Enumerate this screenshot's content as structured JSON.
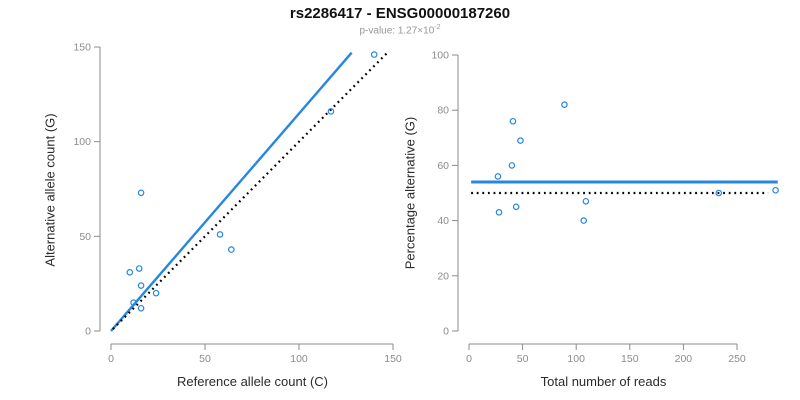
{
  "header": {
    "title": "rs2286417 - ENSG00000187260",
    "subtitle_prefix": "p-value: 1.27×10",
    "subtitle_exponent": "-2"
  },
  "colors": {
    "accent": "#2787e0",
    "dotted_line": "#000000",
    "axis": "#8b8b8b",
    "tick_label": "#8c8c8c",
    "axis_title": "#2b2b2b",
    "title": "#111111",
    "subtitle": "#979797",
    "background": "#ffffff"
  },
  "chart_data": [
    {
      "type": "scatter",
      "xlabel": "Reference allele count (C)",
      "ylabel": "Alternative allele count (G)",
      "xlim": [
        0,
        150
      ],
      "ylim": [
        0,
        150
      ],
      "xticks": [
        0,
        50,
        100,
        150
      ],
      "yticks": [
        0,
        50,
        100,
        150
      ],
      "grid": false,
      "legend": null,
      "points": [
        [
          140,
          146
        ],
        [
          117,
          116
        ],
        [
          16,
          73
        ],
        [
          58,
          51
        ],
        [
          64,
          43
        ],
        [
          15,
          33
        ],
        [
          10,
          31
        ],
        [
          16,
          24
        ],
        [
          24,
          20
        ],
        [
          12,
          15
        ],
        [
          16,
          12
        ]
      ],
      "lines": [
        {
          "name": "fit-line",
          "style": "solid",
          "color": "#2787e0",
          "width": 2.4,
          "x1": 0,
          "y1": 0,
          "x2": 128,
          "y2": 147
        },
        {
          "name": "expected-line",
          "style": "dotted",
          "color": "#000000",
          "width": 2.2,
          "x1": 1,
          "y1": 1,
          "x2": 147,
          "y2": 147
        }
      ]
    },
    {
      "type": "scatter",
      "xlabel": "Total number of reads",
      "ylabel": "Percentage alternative (G)",
      "xlim": [
        0,
        290
      ],
      "ylim": [
        0,
        100
      ],
      "xticks": [
        0,
        50,
        100,
        150,
        200,
        250
      ],
      "yticks": [
        0,
        20,
        40,
        60,
        80,
        100
      ],
      "grid": false,
      "legend": null,
      "points": [
        [
          286,
          51
        ],
        [
          233,
          50
        ],
        [
          89,
          82
        ],
        [
          109,
          47
        ],
        [
          107,
          40
        ],
        [
          48,
          69
        ],
        [
          41,
          76
        ],
        [
          40,
          60
        ],
        [
          44,
          45
        ],
        [
          27,
          56
        ],
        [
          28,
          43
        ]
      ],
      "lines": [
        {
          "name": "fit-line",
          "style": "solid",
          "color": "#2787e0",
          "width": 3,
          "x1": 2,
          "y1": 54,
          "x2": 288,
          "y2": 54
        },
        {
          "name": "expected-line",
          "style": "dotted",
          "color": "#000000",
          "width": 2.2,
          "x1": 2,
          "y1": 50,
          "x2": 279,
          "y2": 50
        }
      ]
    }
  ]
}
